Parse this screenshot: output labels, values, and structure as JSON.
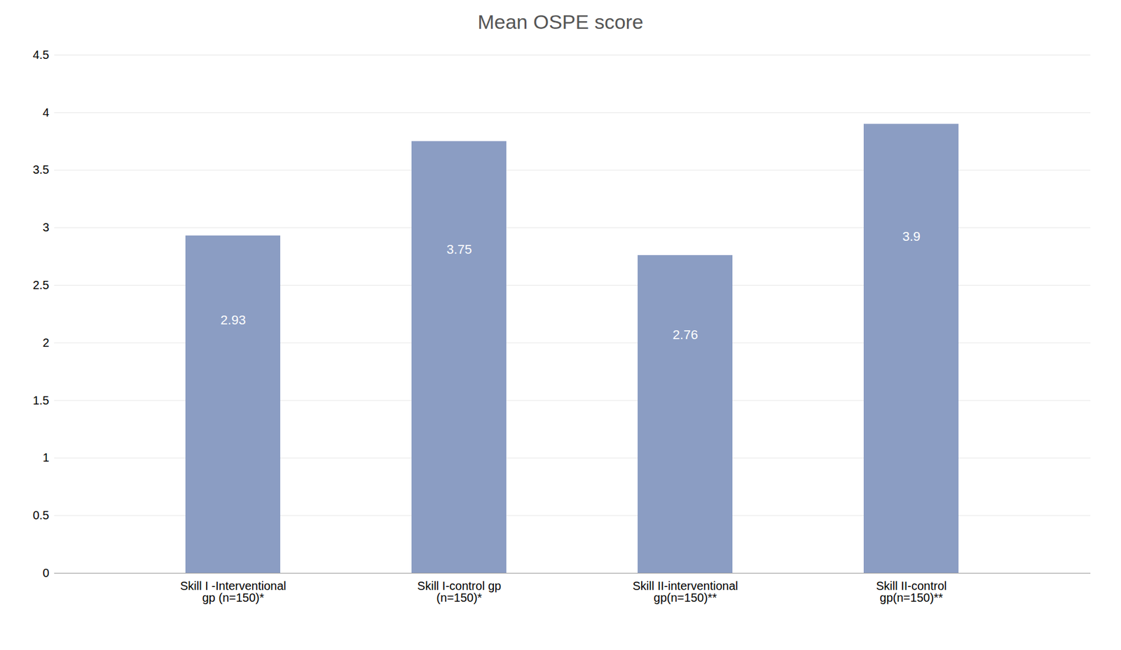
{
  "chart_data": {
    "type": "bar",
    "title": "Mean OSPE score",
    "categories": [
      "Skill I -Interventional\ngp (n=150)*",
      "Skill I-control gp\n(n=150)*",
      "Skill II-interventional\ngp(n=150)**",
      "Skill II-control\ngp(n=150)**"
    ],
    "values": [
      2.93,
      3.75,
      2.76,
      3.9
    ],
    "color": "#8B9DC3",
    "ylim": [
      0,
      4.5
    ],
    "yticks": [
      0,
      0.5,
      1,
      1.5,
      2,
      2.5,
      3,
      3.5,
      4,
      4.5
    ],
    "grid": true,
    "data_labels": true
  }
}
